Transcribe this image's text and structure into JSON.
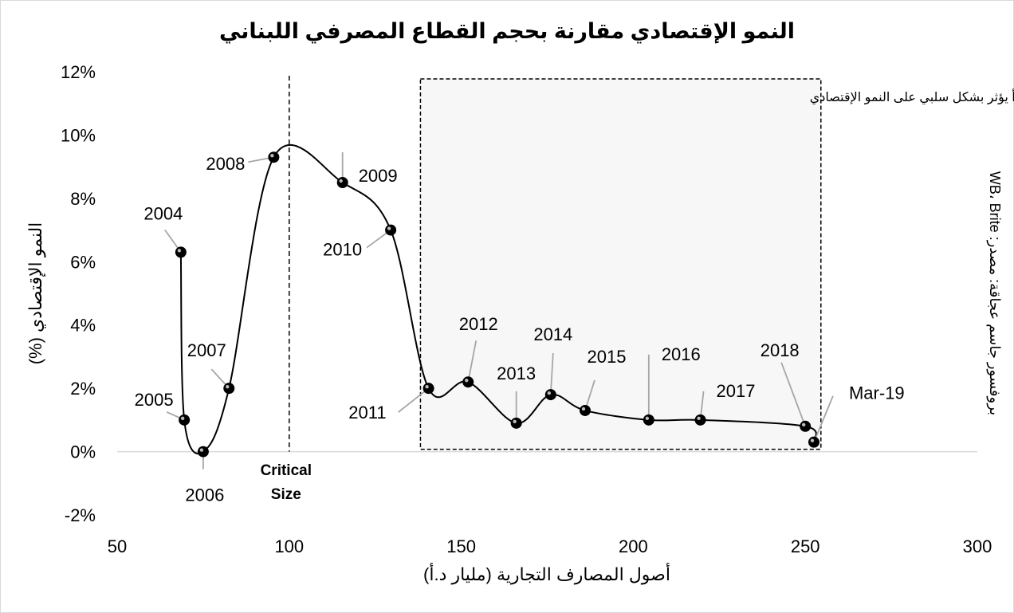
{
  "chart_data": {
    "type": "line",
    "title": "النمو الإقتصادي مقارنة بحجم القطاع المصرفي اللبناني",
    "xlabel": "أصول المصارف التجارية (مليار د.أ)",
    "ylabel": "النمو الإقتصادي (%)",
    "xlim": [
      50,
      300
    ],
    "ylim": [
      -2,
      12
    ],
    "x_ticks": [
      "50",
      "100",
      "150",
      "200",
      "250",
      "300"
    ],
    "y_ticks": [
      "-2%",
      "0%",
      "2%",
      "4%",
      "6%",
      "8%",
      "10%",
      "12%"
    ],
    "series": [
      {
        "points": [
          {
            "label": "2004",
            "x": 68.5,
            "y": 6.3
          },
          {
            "label": "2005",
            "x": 69.5,
            "y": 1.0
          },
          {
            "label": "2006",
            "x": 75,
            "y": 0.0
          },
          {
            "label": "2007",
            "x": 82.5,
            "y": 2.0
          },
          {
            "label": "2008",
            "x": 95.5,
            "y": 9.3
          },
          {
            "label": "2009",
            "x": 115.5,
            "y": 8.5
          },
          {
            "label": "2010",
            "x": 129.5,
            "y": 7.0
          },
          {
            "label": "2011",
            "x": 140.5,
            "y": 2.0
          },
          {
            "label": "2012",
            "x": 152,
            "y": 2.2
          },
          {
            "label": "2013",
            "x": 166,
            "y": 0.9
          },
          {
            "label": "2014",
            "x": 176,
            "y": 1.8
          },
          {
            "label": "2015",
            "x": 186,
            "y": 1.3
          },
          {
            "label": "2016",
            "x": 204.5,
            "y": 1.0
          },
          {
            "label": "2017",
            "x": 219.5,
            "y": 1.0
          },
          {
            "label": "2018",
            "x": 250,
            "y": 0.8
          },
          {
            "label": "Mar-19",
            "x": 252.5,
            "y": 0.3
          }
        ]
      }
    ],
    "grid": false,
    "legend": "none",
    "critical_line": {
      "x": 100,
      "label_line1": "Critical",
      "label_line2": "Size"
    },
    "annotation_box": {
      "x_range": [
        140,
        255
      ],
      "y_range": [
        0.1,
        11.8
      ],
      "text": "تمويل الدوّلة بدأ يؤثر بشكل سلبي على النمو الإقتصادي",
      "fill": "#f7f7f7"
    },
    "source_note": "بروفسور جاسم عجاقة: مصدر: WB، Brite",
    "colors": {
      "line": "#000000",
      "marker": "#000000",
      "leader": "#a6a6a6",
      "axis": "#d9d9d9"
    }
  }
}
